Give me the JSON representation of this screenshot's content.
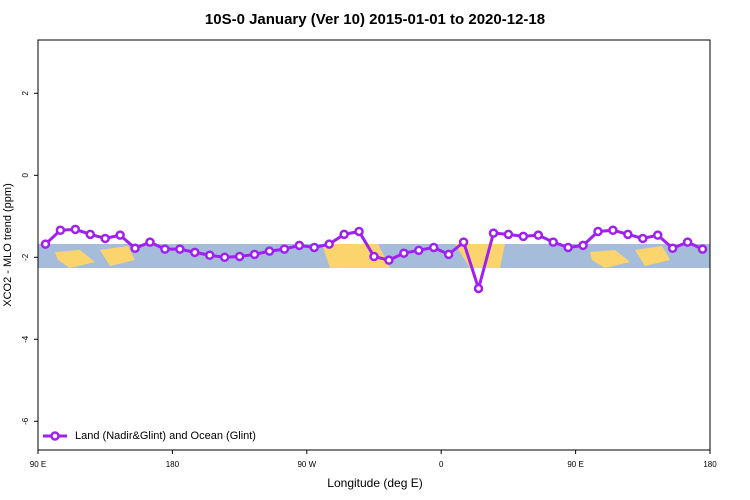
{
  "chart_data": {
    "type": "line",
    "title": "10S-0 January (Ver 10)   2015-01-01 to 2020-12-18",
    "xlabel": "Longitude (deg E)",
    "ylabel": "XCO2 - MLO trend (ppm)",
    "x": [
      95,
      105,
      115,
      125,
      135,
      145,
      155,
      165,
      175,
      185,
      195,
      205,
      215,
      225,
      235,
      245,
      255,
      265,
      275,
      285,
      295,
      305,
      315,
      325,
      335,
      345,
      355,
      365,
      375,
      385,
      395,
      405,
      415,
      425,
      435,
      445,
      455,
      465,
      475,
      485,
      495,
      505,
      515,
      525,
      535
    ],
    "series": [
      {
        "name": "Land (Nadir&Glint) and Ocean (Glint)",
        "color": "#a020f0",
        "values": [
          -1.68,
          -1.34,
          -1.32,
          -1.44,
          -1.54,
          -1.46,
          -1.78,
          -1.63,
          -1.8,
          -1.8,
          -1.88,
          -1.95,
          -2.0,
          -1.98,
          -1.93,
          -1.85,
          -1.8,
          -1.71,
          -1.76,
          -1.68,
          -1.44,
          -1.37,
          -1.98,
          -2.07,
          -1.9,
          -1.83,
          -1.76,
          -1.93,
          -1.63,
          -2.76,
          -1.41,
          -1.44,
          -1.49,
          -1.46,
          -1.63,
          -1.76,
          -1.71,
          -1.37,
          -1.34,
          -1.44,
          -1.54,
          -1.46,
          -1.78,
          -1.63,
          -1.8
        ]
      }
    ],
    "xlim": [
      90,
      540
    ],
    "xticks": [
      {
        "value": 90,
        "label": "90 E"
      },
      180,
      {
        "value": 270,
        "label": "90 W"
      },
      {
        "value": 360,
        "label": "0"
      },
      {
        "value": 450,
        "label": "90 E"
      },
      {
        "value": 540,
        "label": "180"
      }
    ],
    "ylim": [
      -6.7,
      3.3
    ],
    "yticks": [
      -6,
      -4,
      -2,
      0,
      2
    ],
    "legend": "lower left"
  }
}
